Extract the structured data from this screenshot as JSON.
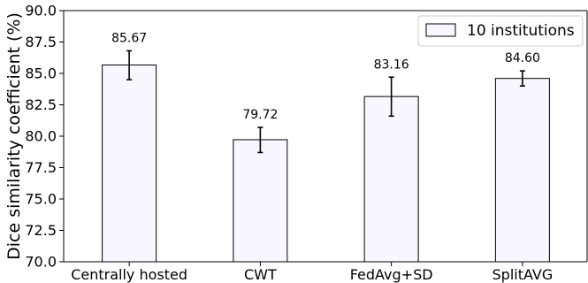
{
  "chart_data": {
    "type": "bar",
    "categories": [
      "Centrally hosted",
      "CWT",
      "FedAvg+SD",
      "SplitAVG"
    ],
    "series": [
      {
        "name": "10 institutions",
        "values": [
          85.67,
          79.72,
          83.16,
          84.6
        ],
        "error_low": [
          84.5,
          78.7,
          81.6,
          84.0
        ],
        "error_high": [
          86.8,
          80.7,
          84.7,
          85.2
        ],
        "value_labels": [
          "85.67",
          "79.72",
          "83.16",
          "84.60"
        ]
      }
    ],
    "title": "",
    "xlabel": "",
    "ylabel": "Dice similarity coefficient (%)",
    "ylim": [
      70.0,
      90.0
    ],
    "yticks": [
      "70.0",
      "72.5",
      "75.0",
      "77.5",
      "80.0",
      "82.5",
      "85.0",
      "87.5",
      "90.0"
    ],
    "legend": "top-right",
    "grid": false,
    "colors": {
      "bar_fill": "#f7f7ff",
      "bar_edge": "#000000",
      "error_bar": "#000000"
    }
  }
}
